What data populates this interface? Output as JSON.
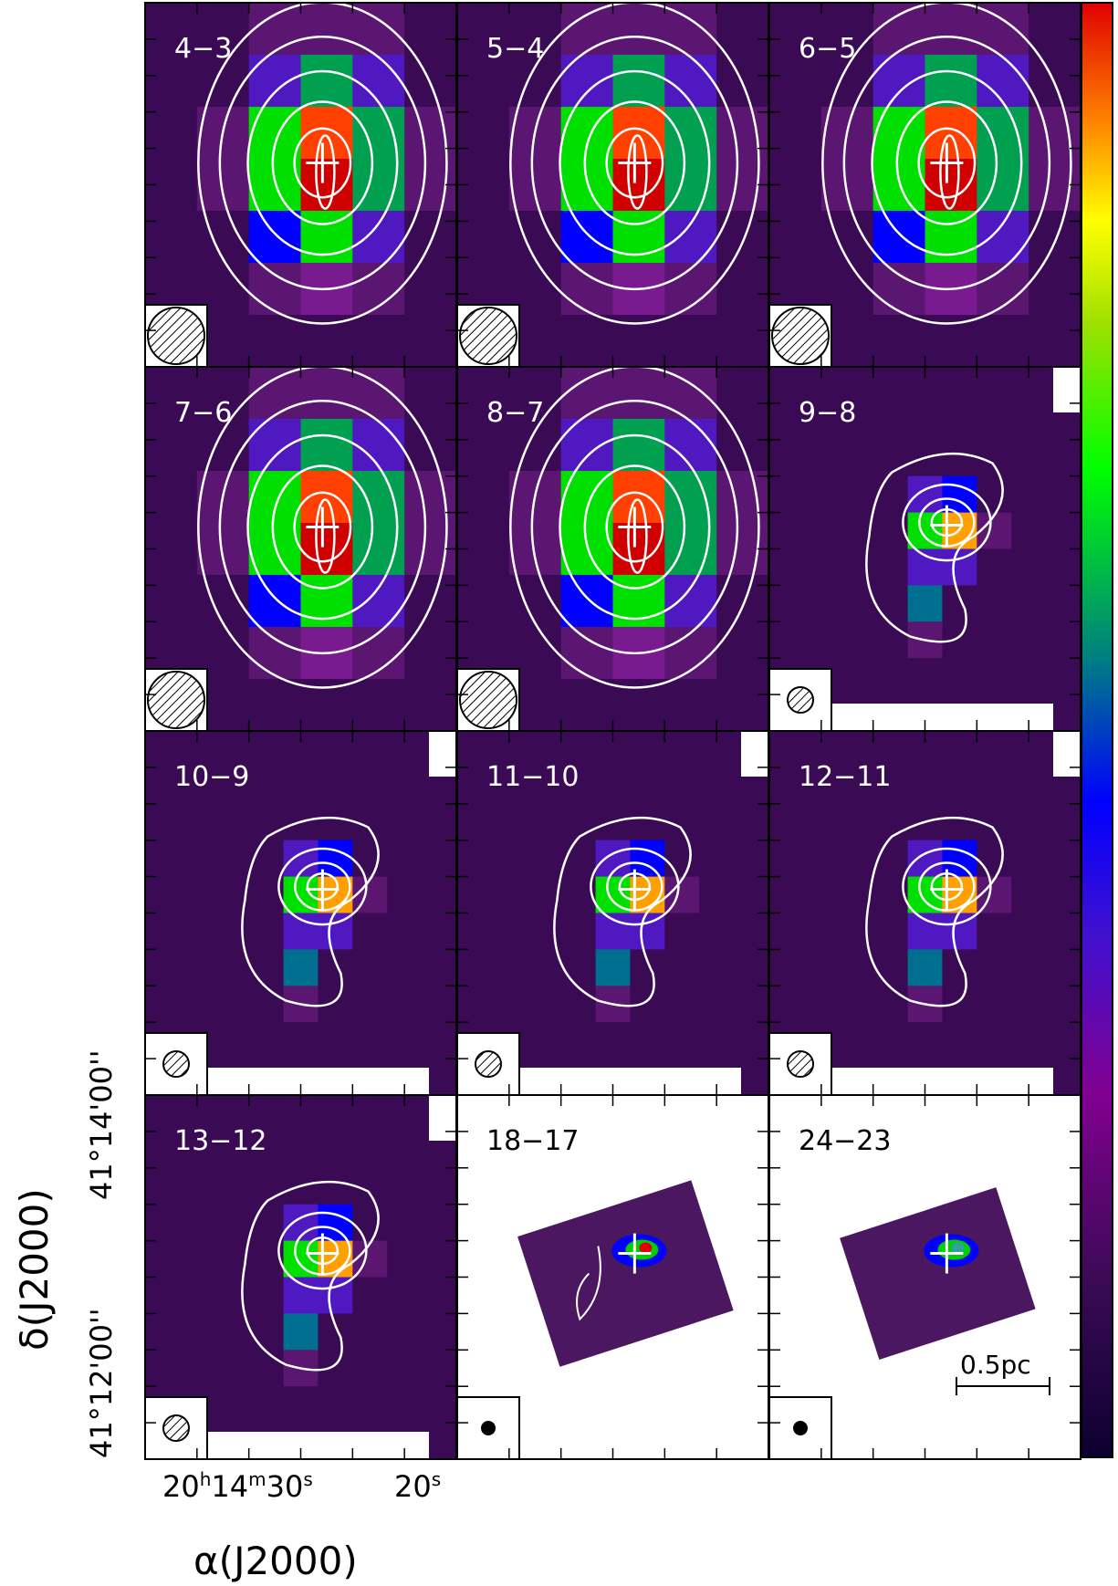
{
  "figure": {
    "panels": [
      {
        "label": "4−3"
      },
      {
        "label": "5−4"
      },
      {
        "label": "6−5"
      },
      {
        "label": "7−6"
      },
      {
        "label": "8−7"
      },
      {
        "label": "9−8"
      },
      {
        "label": "10−9"
      },
      {
        "label": "11−10"
      },
      {
        "label": "12−11"
      },
      {
        "label": "13−12"
      },
      {
        "label": "18−17"
      },
      {
        "label": "24−23"
      }
    ],
    "scale_bar_label": "0.5pc",
    "y_axis_label": "δ(J2000)",
    "y_ticks": {
      "tick_a": "41°14'00''",
      "tick_b": "41°12'00''"
    },
    "x_ticks": {
      "tick_a_h": "20",
      "tick_a_hunit": "h",
      "tick_a_m": "14",
      "tick_a_munit": "m",
      "tick_a_s": "30",
      "tick_a_sunit": "s",
      "tick_b": "20",
      "tick_b_unit": "s"
    },
    "x_axis_label": "α(J2000)",
    "colors": {
      "colormap": [
        "#14003c",
        "#3a0a55",
        "#5a1670",
        "#7a1a90",
        "#5018c0",
        "#0000ff",
        "#006f8f",
        "#00a050",
        "#00e000",
        "#80d000",
        "#ffff00",
        "#ffa000",
        "#ff4000",
        "#d00000"
      ],
      "contour": "#ffffff",
      "frame": "#000000"
    }
  }
}
